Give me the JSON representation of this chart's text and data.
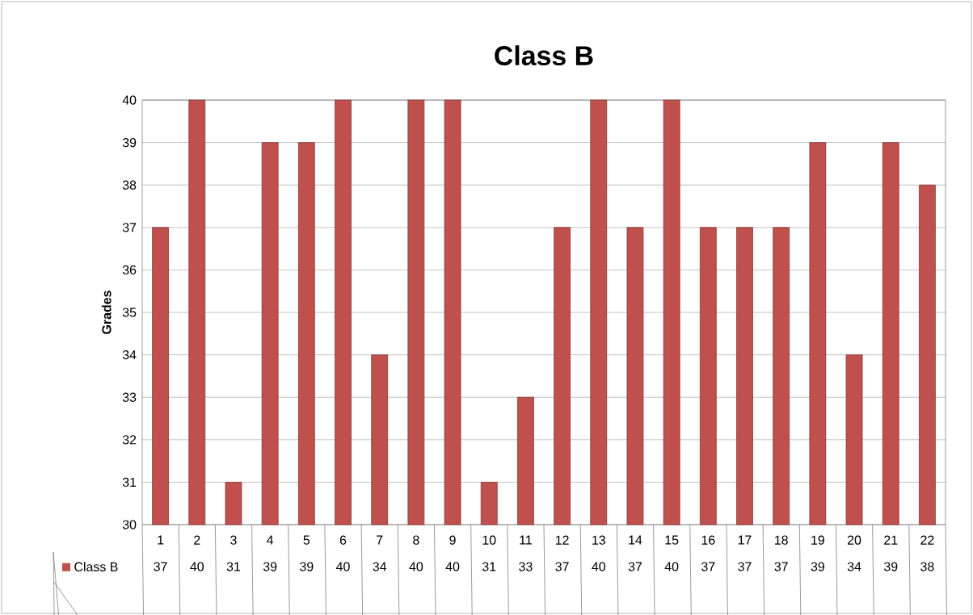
{
  "chart_data": {
    "type": "bar",
    "title": "Class B",
    "ylabel": "Grades",
    "categories": [
      "1",
      "2",
      "3",
      "4",
      "5",
      "6",
      "7",
      "8",
      "9",
      "10",
      "11",
      "12",
      "13",
      "14",
      "15",
      "16",
      "17",
      "18",
      "19",
      "20",
      "21",
      "22"
    ],
    "series": [
      {
        "name": "Class B",
        "color": "#c0504d",
        "values": [
          37,
          40,
          31,
          39,
          39,
          40,
          34,
          40,
          40,
          31,
          33,
          37,
          40,
          37,
          40,
          37,
          37,
          37,
          39,
          34,
          39,
          38
        ]
      }
    ],
    "ylim": [
      30,
      40
    ],
    "yticks": [
      30,
      31,
      32,
      33,
      34,
      35,
      36,
      37,
      38,
      39,
      40
    ],
    "grid": "y",
    "legend": "bottom left",
    "data_labels": true
  }
}
